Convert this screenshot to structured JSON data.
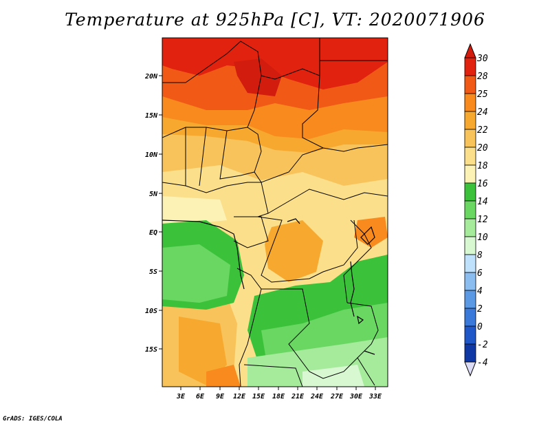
{
  "title": "Temperature at 925hPa [C], VT: 2020071906",
  "credit": "GrADS: IGES/COLA",
  "map": {
    "lon_labels": [
      "3E",
      "6E",
      "9E",
      "12E",
      "15E",
      "18E",
      "21E",
      "24E",
      "27E",
      "30E",
      "33E"
    ],
    "lat_labels": [
      "20N",
      "15N",
      "10N",
      "5N",
      "EQ",
      "5S",
      "10S",
      "15S"
    ]
  },
  "colorbar": {
    "labels": [
      "30",
      "28",
      "25",
      "24",
      "22",
      "20",
      "18",
      "16",
      "14",
      "12",
      "10",
      "8",
      "6",
      "4",
      "2",
      "0",
      "-2",
      "-4"
    ],
    "colors": [
      "#e0220f",
      "#f15a16",
      "#f88a1e",
      "#f7a92f",
      "#f8c35a",
      "#fbdf8b",
      "#fdf2b5",
      "#3bc23a",
      "#6ad763",
      "#a5eb9b",
      "#d8f8d2",
      "#bfe1fb",
      "#8bbdf1",
      "#5c99e4",
      "#3a79d9",
      "#2057c8",
      "#1038a4",
      "#0a1a70"
    ],
    "top_color": "#d11c0e",
    "bottom_color": "#dcdcf6"
  }
}
